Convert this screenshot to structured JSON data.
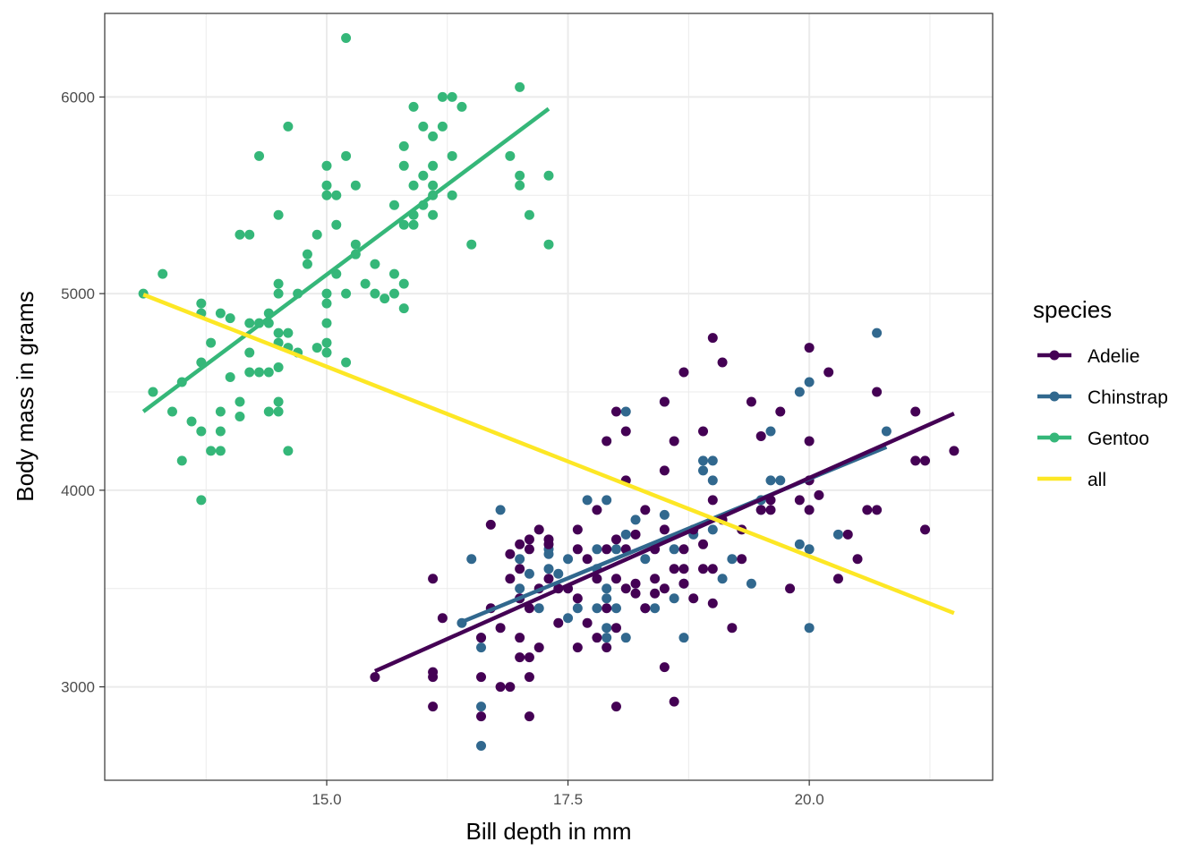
{
  "chart_data": {
    "type": "scatter",
    "xlabel": "Bill depth in mm",
    "ylabel": "Body mass in grams",
    "xlim": [
      12.7,
      21.9
    ],
    "ylim": [
      2525,
      6425
    ],
    "x_ticks": [
      {
        "value": 15.0,
        "label": "15.0"
      },
      {
        "value": 17.5,
        "label": "17.5"
      },
      {
        "value": 20.0,
        "label": "20.0"
      }
    ],
    "y_ticks": [
      {
        "value": 3000,
        "label": "3000"
      },
      {
        "value": 4000,
        "label": "4000"
      },
      {
        "value": 5000,
        "label": "5000"
      },
      {
        "value": 6000,
        "label": "6000"
      }
    ],
    "grid": true,
    "legend": {
      "title": "species",
      "placement": "right",
      "entries": [
        "Adelie",
        "Chinstrap",
        "Gentoo",
        "all"
      ]
    },
    "colors": {
      "Adelie": "#440154",
      "Chinstrap": "#31688E",
      "Gentoo": "#35B779",
      "all": "#FDE725"
    },
    "series": [
      {
        "name": "Gentoo",
        "points": [
          [
            13.1,
            5000
          ],
          [
            13.2,
            4500
          ],
          [
            13.3,
            5100
          ],
          [
            13.4,
            4400
          ],
          [
            13.5,
            4550
          ],
          [
            13.5,
            4150
          ],
          [
            13.6,
            4350
          ],
          [
            13.7,
            4950
          ],
          [
            13.7,
            4900
          ],
          [
            13.7,
            4650
          ],
          [
            13.7,
            4300
          ],
          [
            13.7,
            3950
          ],
          [
            13.8,
            4750
          ],
          [
            13.8,
            4200
          ],
          [
            13.9,
            4900
          ],
          [
            13.9,
            4400
          ],
          [
            13.9,
            4300
          ],
          [
            13.9,
            4200
          ],
          [
            14.0,
            4875
          ],
          [
            14.0,
            4575
          ],
          [
            14.1,
            5300
          ],
          [
            14.1,
            4450
          ],
          [
            14.1,
            4375
          ],
          [
            14.2,
            5300
          ],
          [
            14.2,
            4850
          ],
          [
            14.2,
            4700
          ],
          [
            14.2,
            4600
          ],
          [
            14.3,
            5700
          ],
          [
            14.3,
            4850
          ],
          [
            14.3,
            4600
          ],
          [
            14.4,
            4900
          ],
          [
            14.4,
            4850
          ],
          [
            14.4,
            4600
          ],
          [
            14.4,
            4400
          ],
          [
            14.5,
            5400
          ],
          [
            14.5,
            5050
          ],
          [
            14.5,
            5000
          ],
          [
            14.5,
            4800
          ],
          [
            14.5,
            4750
          ],
          [
            14.5,
            4625
          ],
          [
            14.5,
            4450
          ],
          [
            14.5,
            4400
          ],
          [
            14.6,
            5850
          ],
          [
            14.6,
            4800
          ],
          [
            14.6,
            4725
          ],
          [
            14.6,
            4200
          ],
          [
            14.7,
            5000
          ],
          [
            14.7,
            4700
          ],
          [
            14.8,
            5200
          ],
          [
            14.8,
            5150
          ],
          [
            14.9,
            5300
          ],
          [
            14.9,
            4725
          ],
          [
            15.0,
            5650
          ],
          [
            15.0,
            5550
          ],
          [
            15.0,
            5500
          ],
          [
            15.0,
            5000
          ],
          [
            15.0,
            4950
          ],
          [
            15.0,
            4850
          ],
          [
            15.0,
            4750
          ],
          [
            15.0,
            4700
          ],
          [
            15.1,
            5500
          ],
          [
            15.1,
            5350
          ],
          [
            15.1,
            5100
          ],
          [
            15.2,
            6300
          ],
          [
            15.2,
            5700
          ],
          [
            15.2,
            5000
          ],
          [
            15.2,
            4650
          ],
          [
            15.3,
            5550
          ],
          [
            15.3,
            5250
          ],
          [
            15.3,
            5200
          ],
          [
            15.4,
            5050
          ],
          [
            15.5,
            5150
          ],
          [
            15.5,
            5000
          ],
          [
            15.6,
            4975
          ],
          [
            15.7,
            5450
          ],
          [
            15.7,
            5100
          ],
          [
            15.7,
            5000
          ],
          [
            15.8,
            5750
          ],
          [
            15.8,
            5650
          ],
          [
            15.8,
            5350
          ],
          [
            15.8,
            5050
          ],
          [
            15.8,
            4925
          ],
          [
            15.9,
            5950
          ],
          [
            15.9,
            5550
          ],
          [
            15.9,
            5400
          ],
          [
            15.9,
            5350
          ],
          [
            16.0,
            5850
          ],
          [
            16.0,
            5600
          ],
          [
            16.0,
            5450
          ],
          [
            16.1,
            5800
          ],
          [
            16.1,
            5650
          ],
          [
            16.1,
            5550
          ],
          [
            16.1,
            5500
          ],
          [
            16.1,
            5400
          ],
          [
            16.2,
            6000
          ],
          [
            16.2,
            5850
          ],
          [
            16.3,
            6000
          ],
          [
            16.3,
            5700
          ],
          [
            16.3,
            5500
          ],
          [
            16.4,
            5950
          ],
          [
            16.5,
            5250
          ],
          [
            16.9,
            5700
          ],
          [
            17.0,
            6050
          ],
          [
            17.0,
            5600
          ],
          [
            17.0,
            5550
          ],
          [
            17.1,
            5400
          ],
          [
            17.3,
            5600
          ],
          [
            17.3,
            5250
          ]
        ]
      },
      {
        "name": "Chinstrap",
        "points": [
          [
            16.4,
            3325
          ],
          [
            16.5,
            3650
          ],
          [
            16.6,
            3250
          ],
          [
            16.6,
            3200
          ],
          [
            16.6,
            2900
          ],
          [
            16.6,
            2700
          ],
          [
            16.8,
            3900
          ],
          [
            17.0,
            3650
          ],
          [
            17.0,
            3500
          ],
          [
            17.0,
            3450
          ],
          [
            17.1,
            3575
          ],
          [
            17.2,
            3400
          ],
          [
            17.3,
            3700
          ],
          [
            17.3,
            3675
          ],
          [
            17.3,
            3600
          ],
          [
            17.4,
            3575
          ],
          [
            17.5,
            3650
          ],
          [
            17.5,
            3350
          ],
          [
            17.6,
            3400
          ],
          [
            17.7,
            3950
          ],
          [
            17.8,
            3700
          ],
          [
            17.8,
            3600
          ],
          [
            17.8,
            3400
          ],
          [
            17.9,
            3950
          ],
          [
            17.9,
            3500
          ],
          [
            17.9,
            3450
          ],
          [
            17.9,
            3300
          ],
          [
            17.9,
            3250
          ],
          [
            18.0,
            3700
          ],
          [
            18.0,
            3400
          ],
          [
            18.1,
            4400
          ],
          [
            18.1,
            3775
          ],
          [
            18.1,
            3250
          ],
          [
            18.2,
            3850
          ],
          [
            18.3,
            3650
          ],
          [
            18.3,
            3400
          ],
          [
            18.4,
            3400
          ],
          [
            18.5,
            4450
          ],
          [
            18.5,
            3875
          ],
          [
            18.6,
            3700
          ],
          [
            18.6,
            3450
          ],
          [
            18.7,
            3525
          ],
          [
            18.7,
            3250
          ],
          [
            18.8,
            3775
          ],
          [
            18.9,
            4100
          ],
          [
            18.9,
            4150
          ],
          [
            19.0,
            4150
          ],
          [
            19.0,
            4050
          ],
          [
            19.0,
            3800
          ],
          [
            19.1,
            3550
          ],
          [
            19.2,
            3650
          ],
          [
            19.4,
            3525
          ],
          [
            19.5,
            3950
          ],
          [
            19.5,
            3900
          ],
          [
            19.6,
            4300
          ],
          [
            19.6,
            4050
          ],
          [
            19.7,
            4050
          ],
          [
            19.9,
            3725
          ],
          [
            19.9,
            4500
          ],
          [
            20.0,
            4550
          ],
          [
            20.0,
            3700
          ],
          [
            20.0,
            3300
          ],
          [
            20.3,
            3775
          ],
          [
            20.7,
            4800
          ],
          [
            20.8,
            4300
          ]
        ]
      },
      {
        "name": "Adelie",
        "points": [
          [
            15.5,
            3050
          ],
          [
            16.1,
            3050
          ],
          [
            16.1,
            3075
          ],
          [
            16.1,
            2900
          ],
          [
            16.1,
            3550
          ],
          [
            16.2,
            3350
          ],
          [
            16.6,
            2850
          ],
          [
            16.6,
            3050
          ],
          [
            16.6,
            3250
          ],
          [
            16.7,
            3400
          ],
          [
            16.7,
            3825
          ],
          [
            16.8,
            3000
          ],
          [
            16.9,
            3675
          ],
          [
            16.9,
            3000
          ],
          [
            17.0,
            3150
          ],
          [
            17.0,
            3250
          ],
          [
            17.0,
            3450
          ],
          [
            17.0,
            3600
          ],
          [
            17.0,
            3725
          ],
          [
            17.1,
            2850
          ],
          [
            17.1,
            3050
          ],
          [
            17.1,
            3150
          ],
          [
            17.1,
            3400
          ],
          [
            17.1,
            3700
          ],
          [
            17.1,
            3750
          ],
          [
            17.2,
            3200
          ],
          [
            17.2,
            3500
          ],
          [
            17.2,
            3800
          ],
          [
            17.3,
            3550
          ],
          [
            17.3,
            3750
          ],
          [
            17.4,
            3325
          ],
          [
            17.5,
            3500
          ],
          [
            17.6,
            3200
          ],
          [
            17.6,
            3700
          ],
          [
            17.6,
            3800
          ],
          [
            17.8,
            3250
          ],
          [
            17.8,
            3550
          ],
          [
            17.8,
            3900
          ],
          [
            17.9,
            3200
          ],
          [
            17.9,
            3400
          ],
          [
            17.9,
            3700
          ],
          [
            17.9,
            4250
          ],
          [
            18.0,
            2900
          ],
          [
            18.0,
            3300
          ],
          [
            18.0,
            3550
          ],
          [
            18.0,
            3750
          ],
          [
            18.0,
            4400
          ],
          [
            18.1,
            3500
          ],
          [
            18.1,
            3700
          ],
          [
            18.1,
            4050
          ],
          [
            18.1,
            4300
          ],
          [
            18.2,
            3475
          ],
          [
            18.2,
            3775
          ],
          [
            18.3,
            3400
          ],
          [
            18.3,
            3900
          ],
          [
            18.4,
            3475
          ],
          [
            18.4,
            3700
          ],
          [
            18.5,
            3100
          ],
          [
            18.5,
            3500
          ],
          [
            18.5,
            3800
          ],
          [
            18.5,
            4100
          ],
          [
            18.5,
            4450
          ],
          [
            18.6,
            2925
          ],
          [
            18.6,
            3600
          ],
          [
            18.6,
            4250
          ],
          [
            18.7,
            3525
          ],
          [
            18.7,
            3600
          ],
          [
            18.7,
            4600
          ],
          [
            18.8,
            3450
          ],
          [
            18.8,
            3800
          ],
          [
            18.9,
            3600
          ],
          [
            18.9,
            4300
          ],
          [
            19.0,
            3425
          ],
          [
            19.0,
            3600
          ],
          [
            19.0,
            3950
          ],
          [
            19.0,
            4775
          ],
          [
            19.1,
            3850
          ],
          [
            19.1,
            4650
          ],
          [
            19.2,
            3300
          ],
          [
            19.3,
            3650
          ],
          [
            19.4,
            4450
          ],
          [
            19.5,
            3900
          ],
          [
            19.5,
            4275
          ],
          [
            19.6,
            3950
          ],
          [
            19.7,
            4400
          ],
          [
            19.8,
            3500
          ],
          [
            19.9,
            3950
          ],
          [
            20.0,
            3900
          ],
          [
            20.0,
            4050
          ],
          [
            20.0,
            4250
          ],
          [
            20.0,
            4725
          ],
          [
            20.1,
            3975
          ],
          [
            20.2,
            4600
          ],
          [
            20.3,
            3550
          ],
          [
            20.4,
            3775
          ],
          [
            20.5,
            3650
          ],
          [
            20.6,
            3900
          ],
          [
            20.7,
            3900
          ],
          [
            20.7,
            4500
          ],
          [
            21.1,
            4400
          ],
          [
            21.1,
            4150
          ],
          [
            21.2,
            4150
          ],
          [
            21.2,
            3800
          ],
          [
            21.5,
            4200
          ],
          [
            17.3,
            3725
          ],
          [
            17.7,
            3650
          ],
          [
            18.4,
            3550
          ],
          [
            18.9,
            3725
          ],
          [
            19.3,
            3800
          ],
          [
            16.9,
            3550
          ],
          [
            17.6,
            3450
          ],
          [
            18.7,
            3700
          ],
          [
            17.4,
            3500
          ],
          [
            18.2,
            3525
          ],
          [
            19.6,
            3900
          ],
          [
            16.8,
            3300
          ],
          [
            17.7,
            3325
          ]
        ]
      }
    ],
    "regression_lines": [
      {
        "name": "Gentoo",
        "x": [
          13.1,
          17.3
        ],
        "y": [
          4400,
          5940
        ]
      },
      {
        "name": "Chinstrap",
        "x": [
          16.4,
          20.8
        ],
        "y": [
          3330,
          4220
        ]
      },
      {
        "name": "Adelie",
        "x": [
          15.5,
          21.5
        ],
        "y": [
          3080,
          4390
        ]
      },
      {
        "name": "all",
        "x": [
          13.1,
          21.5
        ],
        "y": [
          4995,
          3375
        ]
      }
    ]
  }
}
